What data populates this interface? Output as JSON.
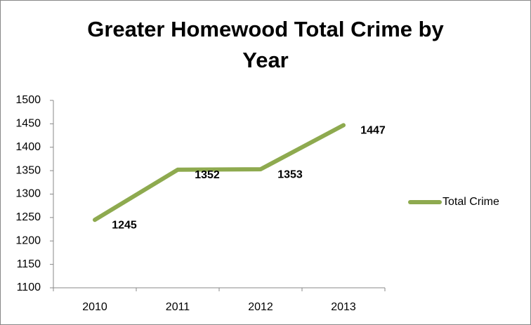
{
  "chart_data": {
    "type": "line",
    "title": "Greater Homewood Total Crime by Year",
    "categories": [
      "2010",
      "2011",
      "2012",
      "2013"
    ],
    "series": [
      {
        "name": "Total Crime",
        "color": "#8eaa4f",
        "values": [
          1245,
          1352,
          1353,
          1447
        ]
      }
    ],
    "ylim": [
      1100,
      1500
    ],
    "yticks": [
      1100,
      1150,
      1200,
      1250,
      1300,
      1350,
      1400,
      1450,
      1500
    ],
    "grid": false,
    "legend": "right"
  }
}
